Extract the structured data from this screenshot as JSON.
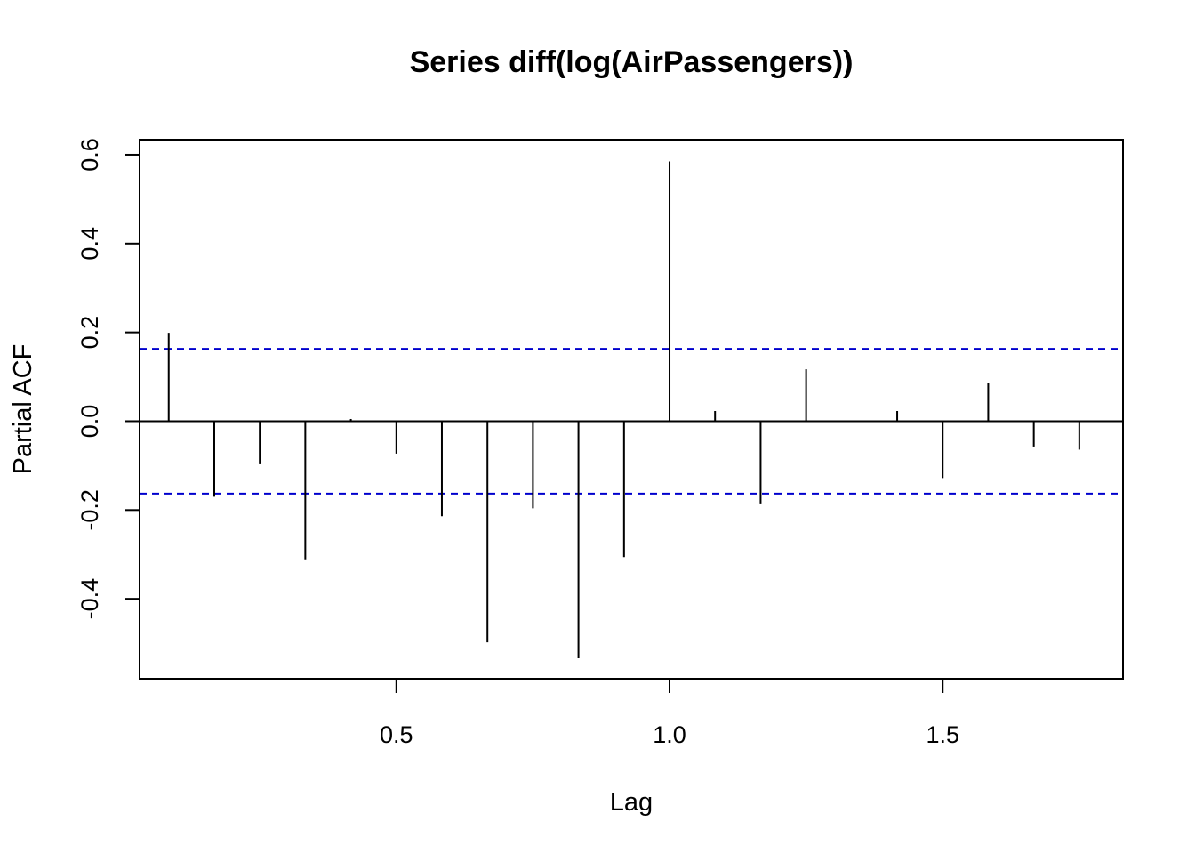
{
  "chart_data": {
    "type": "bar",
    "title": "Series  diff(log(AirPassengers))",
    "xlabel": "Lag",
    "ylabel": "Partial ACF",
    "xlim": [
      0.03,
      1.83
    ],
    "ylim": [
      -0.58,
      0.634
    ],
    "x_ticks": [
      {
        "value": 0.5,
        "label": "0.5"
      },
      {
        "value": 1.0,
        "label": "1.0"
      },
      {
        "value": 1.5,
        "label": "1.5"
      }
    ],
    "y_ticks": [
      {
        "value": -0.4,
        "label": "-0.4"
      },
      {
        "value": -0.2,
        "label": "-0.2"
      },
      {
        "value": 0.0,
        "label": "0.0"
      },
      {
        "value": 0.2,
        "label": "0.2"
      },
      {
        "value": 0.4,
        "label": "0.4"
      },
      {
        "value": 0.6,
        "label": "0.6"
      }
    ],
    "confidence_bounds": [
      0.163,
      -0.163
    ],
    "confidence_line_color": "#0000cd",
    "zero_line": true,
    "x": [
      0.0833,
      0.1667,
      0.25,
      0.3333,
      0.4167,
      0.5,
      0.5833,
      0.6667,
      0.75,
      0.8333,
      0.9167,
      1.0,
      1.0833,
      1.1667,
      1.25,
      1.3333,
      1.4167,
      1.5,
      1.5833,
      1.6667,
      1.75
    ],
    "values": [
      0.199,
      -0.17,
      -0.097,
      -0.311,
      0.005,
      -0.073,
      -0.214,
      -0.498,
      -0.196,
      -0.534,
      -0.306,
      0.585,
      0.023,
      -0.185,
      0.117,
      0.0,
      0.023,
      -0.128,
      0.086,
      -0.057,
      -0.064
    ]
  }
}
